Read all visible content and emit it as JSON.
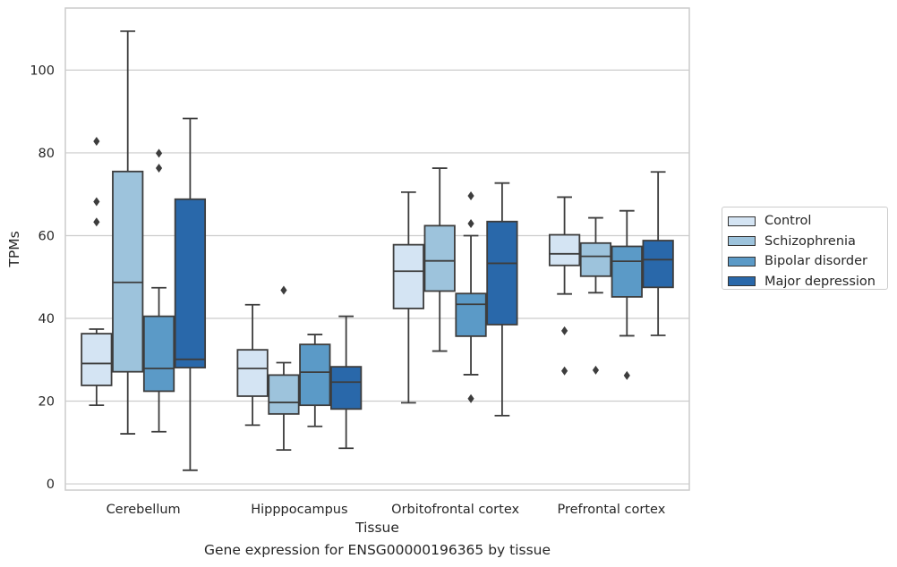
{
  "chart_data": {
    "type": "box",
    "xlabel": "Tissue",
    "ylabel": "TPMs",
    "caption": "Gene expression for ENSG00000196365 by tissue",
    "categories": [
      "Cerebellum",
      "Hipppocampus",
      "Orbitofrontal cortex",
      "Prefrontal cortex"
    ],
    "ylim": [
      -1.5,
      115
    ],
    "yticks": [
      0,
      20,
      40,
      60,
      80,
      100
    ],
    "grid": "horizontal",
    "legend_position": "right",
    "series": [
      {
        "name": "Control",
        "color": "#d4e4f3",
        "boxes": [
          {
            "whisker_low": 19.0,
            "q1": 23.8,
            "median": 29.1,
            "q3": 36.3,
            "whisker_high": 37.4,
            "outliers": [
              63.3,
              68.2,
              82.8
            ]
          },
          {
            "whisker_low": 14.2,
            "q1": 21.2,
            "median": 27.9,
            "q3": 32.4,
            "whisker_high": 43.3,
            "outliers": []
          },
          {
            "whisker_low": 19.6,
            "q1": 42.4,
            "median": 51.4,
            "q3": 57.8,
            "whisker_high": 70.5,
            "outliers": []
          },
          {
            "whisker_low": 45.9,
            "q1": 52.8,
            "median": 55.6,
            "q3": 60.2,
            "whisker_high": 69.3,
            "outliers": [
              27.3,
              37.0
            ]
          }
        ]
      },
      {
        "name": "Schizophrenia",
        "color": "#9dc3dc",
        "boxes": [
          {
            "whisker_low": 12.1,
            "q1": 27.1,
            "median": 48.7,
            "q3": 75.5,
            "whisker_high": 109.4,
            "outliers": []
          },
          {
            "whisker_low": 8.2,
            "q1": 16.9,
            "median": 19.7,
            "q3": 26.3,
            "whisker_high": 29.3,
            "outliers": [
              46.8
            ]
          },
          {
            "whisker_low": 32.1,
            "q1": 46.6,
            "median": 53.9,
            "q3": 62.4,
            "whisker_high": 76.3,
            "outliers": []
          },
          {
            "whisker_low": 46.2,
            "q1": 50.2,
            "median": 55.0,
            "q3": 58.2,
            "whisker_high": 64.3,
            "outliers": [
              27.5
            ]
          }
        ]
      },
      {
        "name": "Bipolar disorder",
        "color": "#5b9ac7",
        "boxes": [
          {
            "whisker_low": 12.6,
            "q1": 22.4,
            "median": 27.9,
            "q3": 40.5,
            "whisker_high": 47.4,
            "outliers": [
              76.3,
              79.9
            ]
          },
          {
            "whisker_low": 13.9,
            "q1": 19.0,
            "median": 27.0,
            "q3": 33.7,
            "whisker_high": 36.1,
            "outliers": []
          },
          {
            "whisker_low": 26.4,
            "q1": 35.7,
            "median": 43.4,
            "q3": 46.0,
            "whisker_high": 60.0,
            "outliers": [
              20.6,
              62.9,
              69.6
            ]
          },
          {
            "whisker_low": 35.8,
            "q1": 45.2,
            "median": 53.8,
            "q3": 57.4,
            "whisker_high": 66.0,
            "outliers": [
              26.2
            ]
          }
        ]
      },
      {
        "name": "Major depression",
        "color": "#2968aa",
        "boxes": [
          {
            "whisker_low": 3.3,
            "q1": 28.1,
            "median": 30.1,
            "q3": 68.8,
            "whisker_high": 88.3,
            "outliers": []
          },
          {
            "whisker_low": 8.6,
            "q1": 18.1,
            "median": 24.6,
            "q3": 28.3,
            "whisker_high": 40.5,
            "outliers": []
          },
          {
            "whisker_low": 16.5,
            "q1": 38.5,
            "median": 53.3,
            "q3": 63.4,
            "whisker_high": 72.7,
            "outliers": []
          },
          {
            "whisker_low": 35.9,
            "q1": 47.5,
            "median": 54.2,
            "q3": 58.8,
            "whisker_high": 75.4,
            "outliers": []
          }
        ]
      }
    ]
  }
}
